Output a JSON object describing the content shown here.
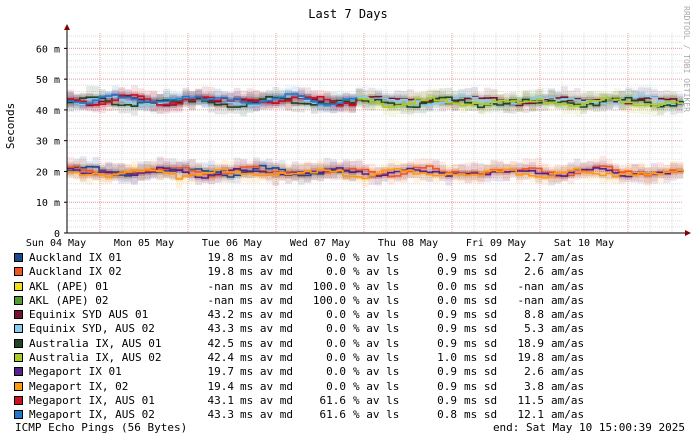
{
  "chart_data": {
    "type": "line",
    "title": "Last 7 Days",
    "ylabel": "Seconds",
    "watermark": "RRDTOOL / TOBI OETIKER",
    "ylim": [
      0,
      0.065
    ],
    "yticks": [
      {
        "value": 0,
        "label": "0"
      },
      {
        "value": 0.01,
        "label": "10 m"
      },
      {
        "value": 0.02,
        "label": "20 m"
      },
      {
        "value": 0.03,
        "label": "30 m"
      },
      {
        "value": 0.04,
        "label": "40 m"
      },
      {
        "value": 0.05,
        "label": "50 m"
      },
      {
        "value": 0.06,
        "label": "60 m"
      }
    ],
    "xlim": [
      "2025-05-03 15:00",
      "2025-05-10 15:00"
    ],
    "xticks": [
      "Sun 04 May",
      "Mon 05 May",
      "Tue 06 May",
      "Wed 07 May",
      "Thu 08 May",
      "Fri 09 May",
      "Sat 10 May"
    ],
    "series": [
      {
        "name": "Auckland IX 01",
        "color": "#1a4a8a",
        "median_ms": 19.8,
        "loss_pct": 0.0,
        "sd_ms": 0.9,
        "am_as": 2.7,
        "level_ms": 20,
        "active": "first-half"
      },
      {
        "name": "Auckland IX 02",
        "color": "#ee5522",
        "median_ms": 19.8,
        "loss_pct": 0.0,
        "sd_ms": 0.9,
        "am_as": 2.6,
        "level_ms": 20,
        "active": "full"
      },
      {
        "name": "AKL (APE) 01",
        "color": "#eedd22",
        "median_ms": null,
        "loss_pct": 100.0,
        "sd_ms": 0.0,
        "am_as": null,
        "level_ms": null,
        "active": "none"
      },
      {
        "name": "AKL (APE) 02",
        "color": "#559933",
        "median_ms": null,
        "loss_pct": 100.0,
        "sd_ms": 0.0,
        "am_as": null,
        "level_ms": null,
        "active": "none"
      },
      {
        "name": "Equinix SYD AUS 01",
        "color": "#771133",
        "median_ms": 43.2,
        "loss_pct": 0.0,
        "sd_ms": 0.9,
        "am_as": 8.8,
        "level_ms": 43,
        "active": "full"
      },
      {
        "name": "Equinix SYD, AUS 02",
        "color": "#88ccee",
        "median_ms": 43.3,
        "loss_pct": 0.0,
        "sd_ms": 0.9,
        "am_as": 5.3,
        "level_ms": 43,
        "active": "full"
      },
      {
        "name": "Australia IX, AUS 01",
        "color": "#224422",
        "median_ms": 42.5,
        "loss_pct": 0.0,
        "sd_ms": 0.9,
        "am_as": 18.9,
        "level_ms": 42.5,
        "active": "full"
      },
      {
        "name": "Australia IX, AUS 02",
        "color": "#aacc22",
        "median_ms": 42.4,
        "loss_pct": 0.0,
        "sd_ms": 1.0,
        "am_as": 19.8,
        "level_ms": 42.4,
        "active": "second-half"
      },
      {
        "name": "Megaport IX 01",
        "color": "#552288",
        "median_ms": 19.7,
        "loss_pct": 0.0,
        "sd_ms": 0.9,
        "am_as": 2.6,
        "level_ms": 19.7,
        "active": "full"
      },
      {
        "name": "Megaport IX, 02",
        "color": "#ff9911",
        "median_ms": 19.4,
        "loss_pct": 0.0,
        "sd_ms": 0.9,
        "am_as": 3.8,
        "level_ms": 19.4,
        "active": "full"
      },
      {
        "name": "Megaport IX, AUS 01",
        "color": "#cc1122",
        "median_ms": 43.1,
        "loss_pct": 61.6,
        "sd_ms": 0.9,
        "am_as": 11.5,
        "level_ms": 43.1,
        "active": "first-half"
      },
      {
        "name": "Megaport IX, AUS 02",
        "color": "#2277cc",
        "median_ms": 43.3,
        "loss_pct": 61.6,
        "sd_ms": 0.8,
        "am_as": 12.1,
        "level_ms": 43.3,
        "active": "first-half"
      }
    ]
  },
  "legend": {
    "unit_median": "ms av md",
    "unit_loss": "% av ls",
    "unit_sd": "ms sd",
    "unit_am": "am/as",
    "rows": [
      {
        "name": "Auckland IX 01",
        "median": "19.8",
        "loss": "0.0",
        "sd": "0.9",
        "am": "2.7",
        "color": "#1a4a8a"
      },
      {
        "name": "Auckland IX 02",
        "median": "19.8",
        "loss": "0.0",
        "sd": "0.9",
        "am": "2.6",
        "color": "#ee5522"
      },
      {
        "name": "AKL (APE) 01",
        "median": "-nan",
        "loss": "100.0",
        "sd": "0.0",
        "am": "-nan",
        "color": "#eedd22"
      },
      {
        "name": "AKL (APE) 02",
        "median": "-nan",
        "loss": "100.0",
        "sd": "0.0",
        "am": "-nan",
        "color": "#559933"
      },
      {
        "name": "Equinix SYD AUS 01",
        "median": "43.2",
        "loss": "0.0",
        "sd": "0.9",
        "am": "8.8",
        "color": "#771133"
      },
      {
        "name": "Equinix SYD, AUS 02",
        "median": "43.3",
        "loss": "0.0",
        "sd": "0.9",
        "am": "5.3",
        "color": "#88ccee"
      },
      {
        "name": "Australia IX, AUS 01",
        "median": "42.5",
        "loss": "0.0",
        "sd": "0.9",
        "am": "18.9",
        "color": "#224422"
      },
      {
        "name": "Australia IX, AUS 02",
        "median": "42.4",
        "loss": "0.0",
        "sd": "1.0",
        "am": "19.8",
        "color": "#aacc22"
      },
      {
        "name": "Megaport IX 01",
        "median": "19.7",
        "loss": "0.0",
        "sd": "0.9",
        "am": "2.6",
        "color": "#552288"
      },
      {
        "name": "Megaport IX, 02",
        "median": "19.4",
        "loss": "0.0",
        "sd": "0.9",
        "am": "3.8",
        "color": "#ff9911"
      },
      {
        "name": "Megaport IX, AUS 01",
        "median": "43.1",
        "loss": "61.6",
        "sd": "0.9",
        "am": "11.5",
        "color": "#cc1122"
      },
      {
        "name": "Megaport IX, AUS 02",
        "median": "43.3",
        "loss": "61.6",
        "sd": "0.8",
        "am": "12.1",
        "color": "#2277cc"
      }
    ]
  },
  "footer": {
    "left": "ICMP Echo Pings (56 Bytes)",
    "right": "end: Sat May 10 15:00:39 2025"
  }
}
